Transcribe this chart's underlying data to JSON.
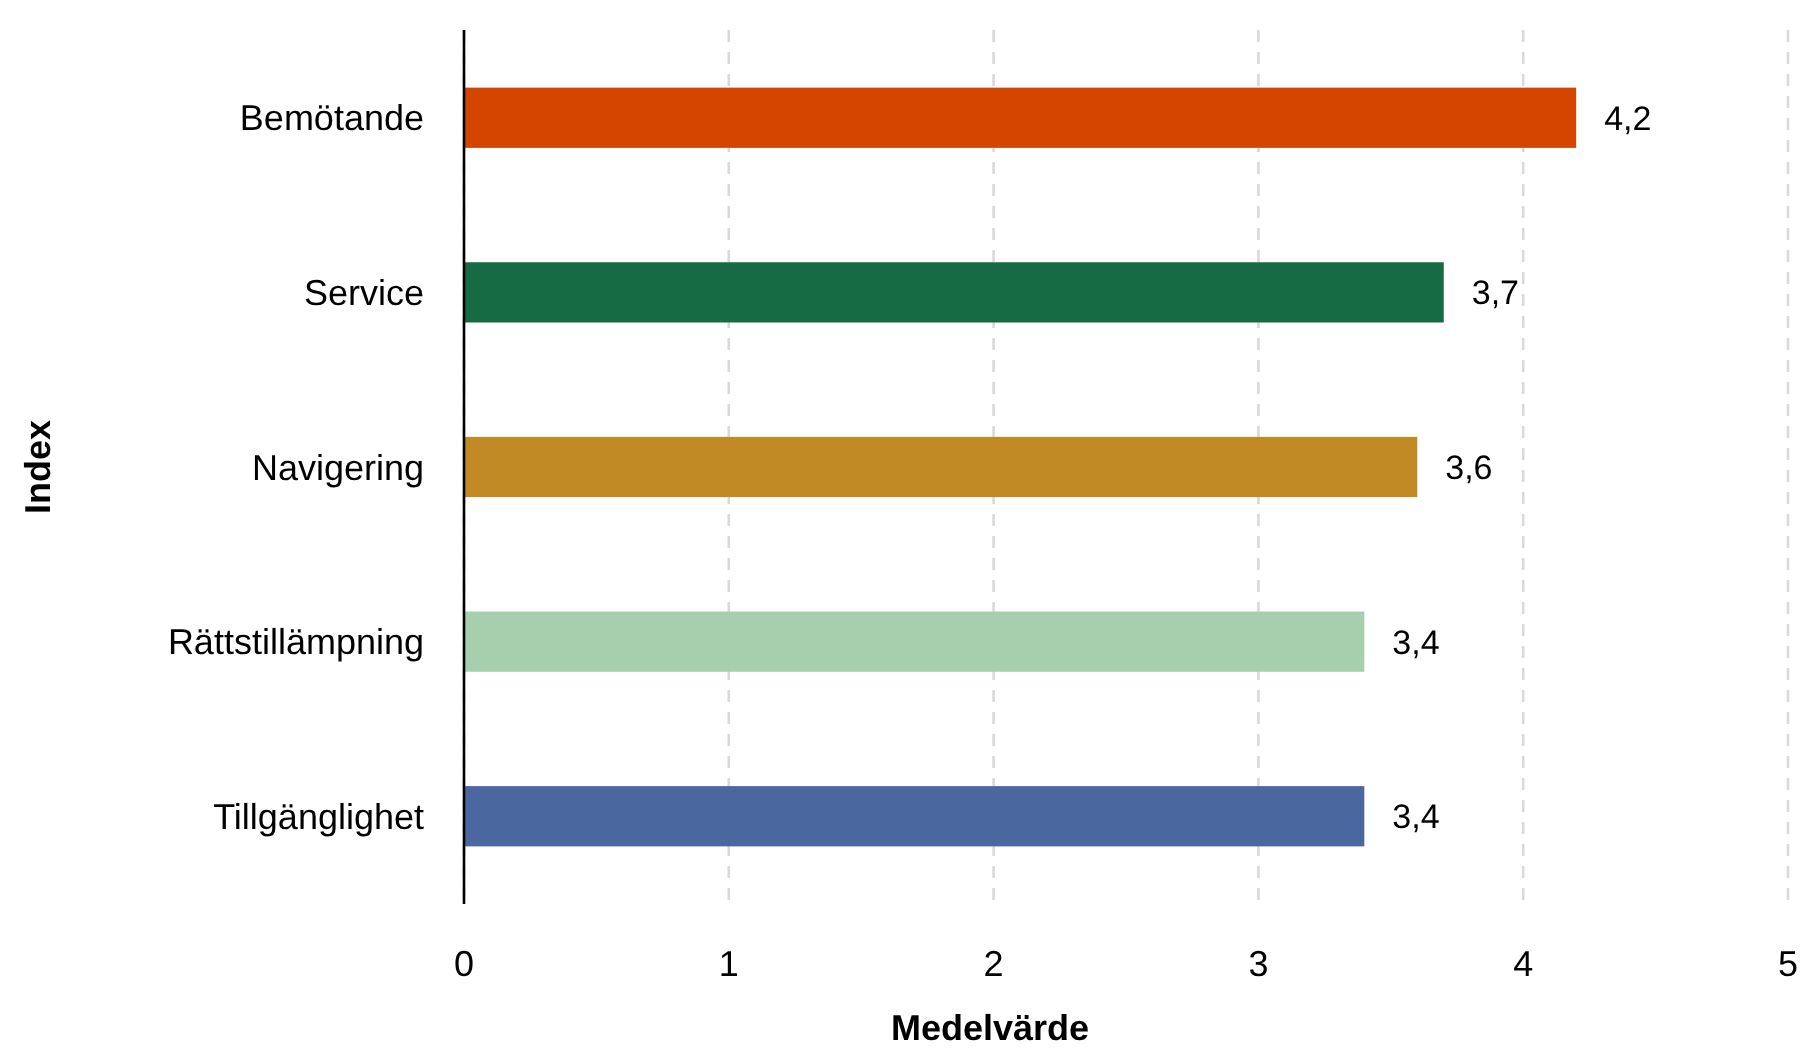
{
  "chart_data": {
    "type": "bar",
    "orientation": "horizontal",
    "xlabel": "Medelvärde",
    "ylabel": "Index",
    "categories": [
      "Bemötande",
      "Service",
      "Navigering",
      "Rättstillämpning",
      "Tillgänglighet"
    ],
    "values": [
      4.2,
      3.7,
      3.6,
      3.4,
      3.4
    ],
    "colors": [
      "#d44500",
      "#166b45",
      "#c28a25",
      "#a6d0ad",
      "#4a67a0"
    ],
    "value_labels": [
      "4,2",
      "3,7",
      "3,6",
      "3,4",
      "3,4"
    ],
    "xlim": [
      0,
      5
    ],
    "xticks": [
      0,
      1,
      2,
      3,
      4,
      5
    ],
    "grid": "x"
  }
}
